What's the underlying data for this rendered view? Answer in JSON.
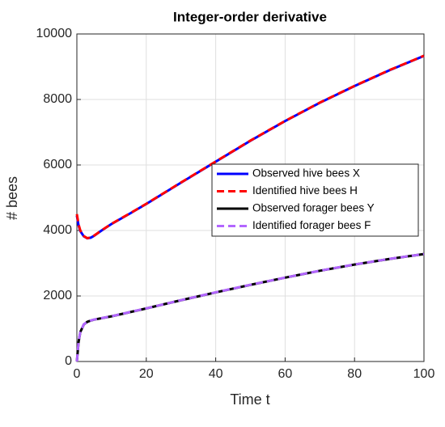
{
  "chart_data": {
    "type": "line",
    "title": "Integer-order derivative",
    "xlabel": "Time t",
    "ylabel": "# bees",
    "x": [
      0,
      0.5,
      1,
      2,
      3,
      4,
      5,
      7,
      10,
      15,
      20,
      30,
      40,
      50,
      60,
      70,
      80,
      90,
      100
    ],
    "series": [
      {
        "name": "Observed hive bees X",
        "color": "#0000ff",
        "style": "solid",
        "values": [
          4450,
          4150,
          3980,
          3820,
          3760,
          3780,
          3840,
          3990,
          4200,
          4500,
          4810,
          5460,
          6100,
          6740,
          7340,
          7900,
          8410,
          8890,
          9330
        ]
      },
      {
        "name": "Identified hive bees H",
        "color": "#ff0000",
        "style": "dashed",
        "values": [
          4500,
          4180,
          4000,
          3830,
          3765,
          3785,
          3845,
          3995,
          4205,
          4505,
          4815,
          5465,
          6105,
          6745,
          7345,
          7905,
          8415,
          8895,
          9335
        ]
      },
      {
        "name": "Observed forager bees Y",
        "color": "#000000",
        "style": "solid",
        "values": [
          0,
          600,
          900,
          1130,
          1210,
          1250,
          1280,
          1320,
          1380,
          1500,
          1620,
          1870,
          2110,
          2340,
          2560,
          2770,
          2960,
          3130,
          3280
        ]
      },
      {
        "name": "Identified forager bees F",
        "color": "#b266ff",
        "style": "dashed",
        "values": [
          0,
          610,
          905,
          1135,
          1212,
          1252,
          1282,
          1322,
          1382,
          1502,
          1622,
          1872,
          2112,
          2342,
          2562,
          2772,
          2962,
          3132,
          3282
        ]
      }
    ],
    "xlim": [
      0,
      100
    ],
    "xticks": [
      0,
      20,
      40,
      60,
      80,
      100
    ],
    "ylim": [
      0,
      10000
    ],
    "yticks": [
      0,
      2000,
      4000,
      6000,
      8000,
      10000
    ],
    "grid": true,
    "legend": "east"
  }
}
